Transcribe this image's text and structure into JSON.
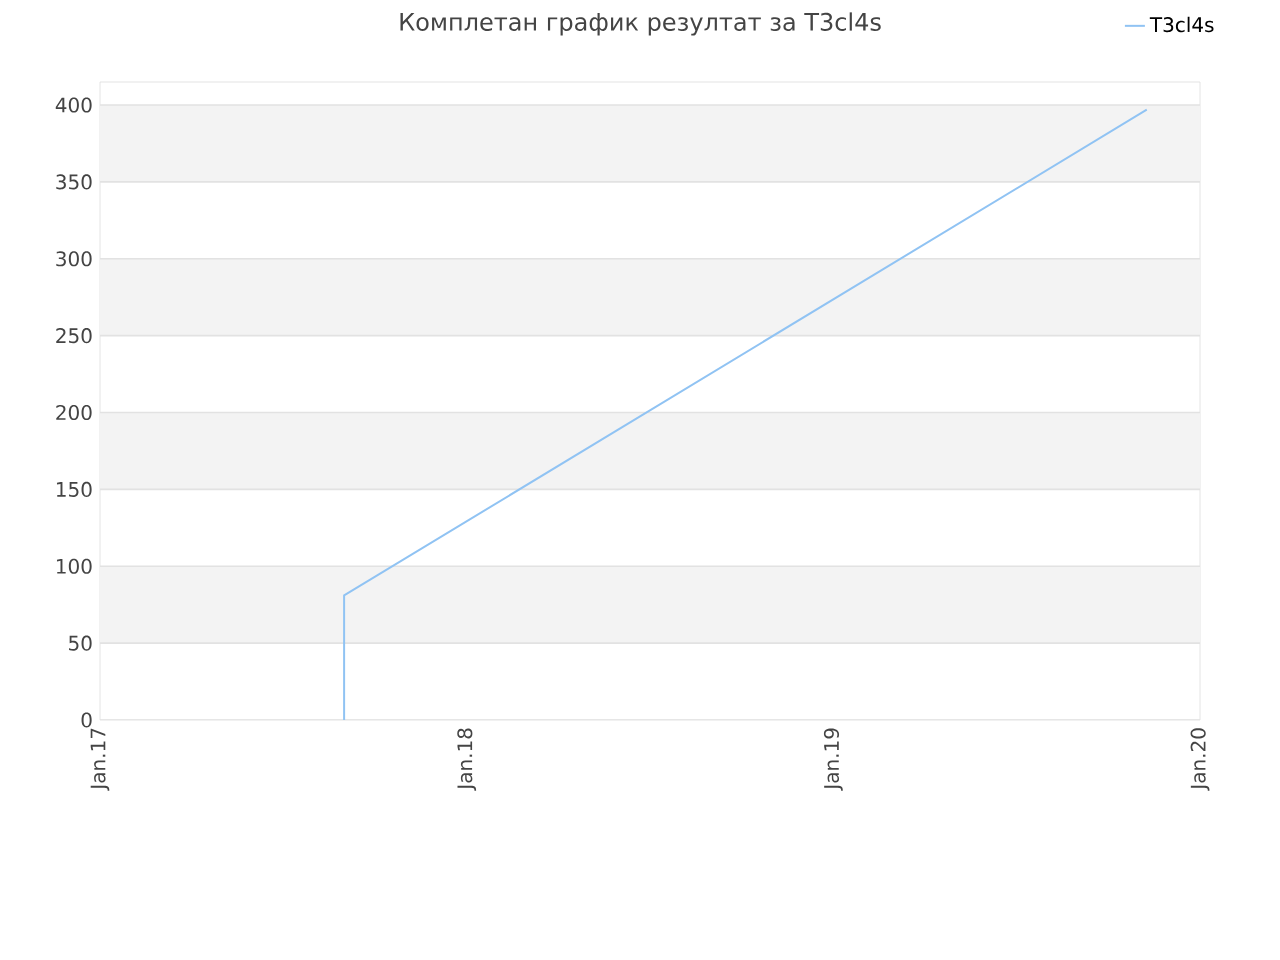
{
  "chart_data": {
    "type": "line",
    "title": "Комплетан график резултат за T3cl4s",
    "x": [
      "2017-09-01",
      "2017-09-01",
      "2019-11-09"
    ],
    "series": [
      {
        "name": "T3cl4s",
        "color": "#90c3f3",
        "values": [
          0,
          81,
          397
        ]
      }
    ],
    "xlim": [
      "2017-01-01",
      "2020-01-01"
    ],
    "xticks": [
      {
        "value": "2017-01-01",
        "label": "Jan.17"
      },
      {
        "value": "2018-01-01",
        "label": "Jan.18"
      },
      {
        "value": "2019-01-01",
        "label": "Jan.19"
      },
      {
        "value": "2020-01-01",
        "label": "Jan.20"
      }
    ],
    "ylim": [
      0,
      415
    ],
    "yticks": [
      0,
      50,
      100,
      150,
      200,
      250,
      300,
      350,
      400
    ],
    "grid": "y",
    "legend": "top right",
    "line_style": "solid"
  }
}
